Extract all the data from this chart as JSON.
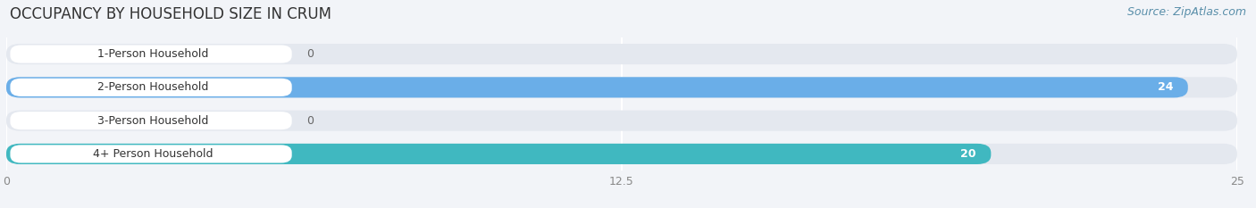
{
  "title": "OCCUPANCY BY HOUSEHOLD SIZE IN CRUM",
  "source": "Source: ZipAtlas.com",
  "categories": [
    "1-Person Household",
    "2-Person Household",
    "3-Person Household",
    "4+ Person Household"
  ],
  "values": [
    0,
    24,
    0,
    20
  ],
  "bar_colors": [
    "#f0a0a8",
    "#6aaee8",
    "#c8a8d8",
    "#40b8c0"
  ],
  "xlim": [
    0,
    25
  ],
  "xticks": [
    0,
    12.5,
    25
  ],
  "background_color": "#f2f4f8",
  "bar_bg_color": "#e4e8ef",
  "label_box_color": "#ffffff",
  "title_fontsize": 12,
  "source_fontsize": 9,
  "label_fontsize": 9,
  "value_fontsize": 9
}
